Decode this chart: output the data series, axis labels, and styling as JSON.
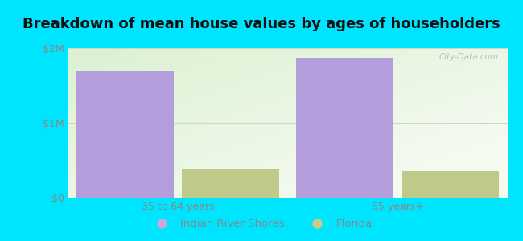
{
  "title": "Breakdown of mean house values by ages of householders",
  "categories": [
    "35 to 64 years",
    "65 years+"
  ],
  "series": [
    {
      "name": "Indian River Shores",
      "values": [
        1700000,
        1870000
      ],
      "color": "#b39ddb"
    },
    {
      "name": "Florida",
      "values": [
        390000,
        350000
      ],
      "color": "#bec98a"
    }
  ],
  "ylim": [
    0,
    2000000
  ],
  "yticks": [
    0,
    1000000,
    2000000
  ],
  "ytick_labels": [
    "$0",
    "$1M",
    "$2M"
  ],
  "bar_width": 0.22,
  "group_centers": [
    0.25,
    0.75
  ],
  "figure_bg": "#00e5ff",
  "plot_bg": "#eef7e8",
  "title_fontsize": 13,
  "grid_color": "#d0d8c8",
  "tick_color": "#888888",
  "title_color": "#111111",
  "legend_colors": [
    "#c9a8e0",
    "#c8cc80"
  ],
  "legend_names": [
    "Indian River Shores",
    "Florida"
  ]
}
